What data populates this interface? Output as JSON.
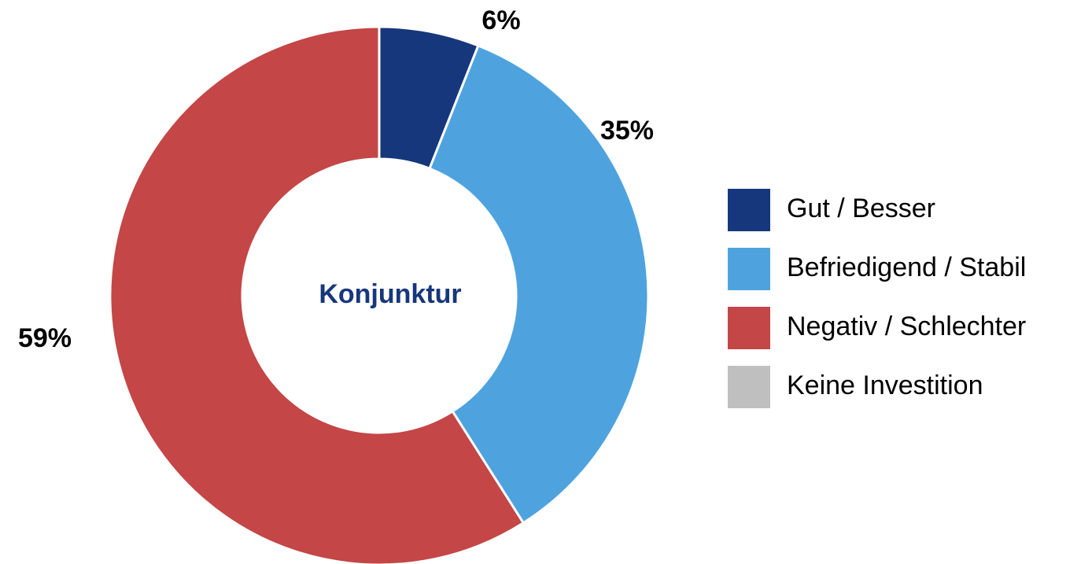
{
  "chart_data": {
    "type": "donut",
    "center_label": "Konjunktur",
    "categories": [
      "Gut / Besser",
      "Befriedigend / Stabil",
      "Negativ / Schlechter",
      "Keine Investition"
    ],
    "values": [
      6,
      35,
      59,
      0
    ],
    "value_labels": [
      "6%",
      "35%",
      "59%",
      null
    ],
    "colors": [
      "#17377c",
      "#4ea3df",
      "#c44646",
      "#bfbfbf"
    ],
    "legend": "right"
  }
}
